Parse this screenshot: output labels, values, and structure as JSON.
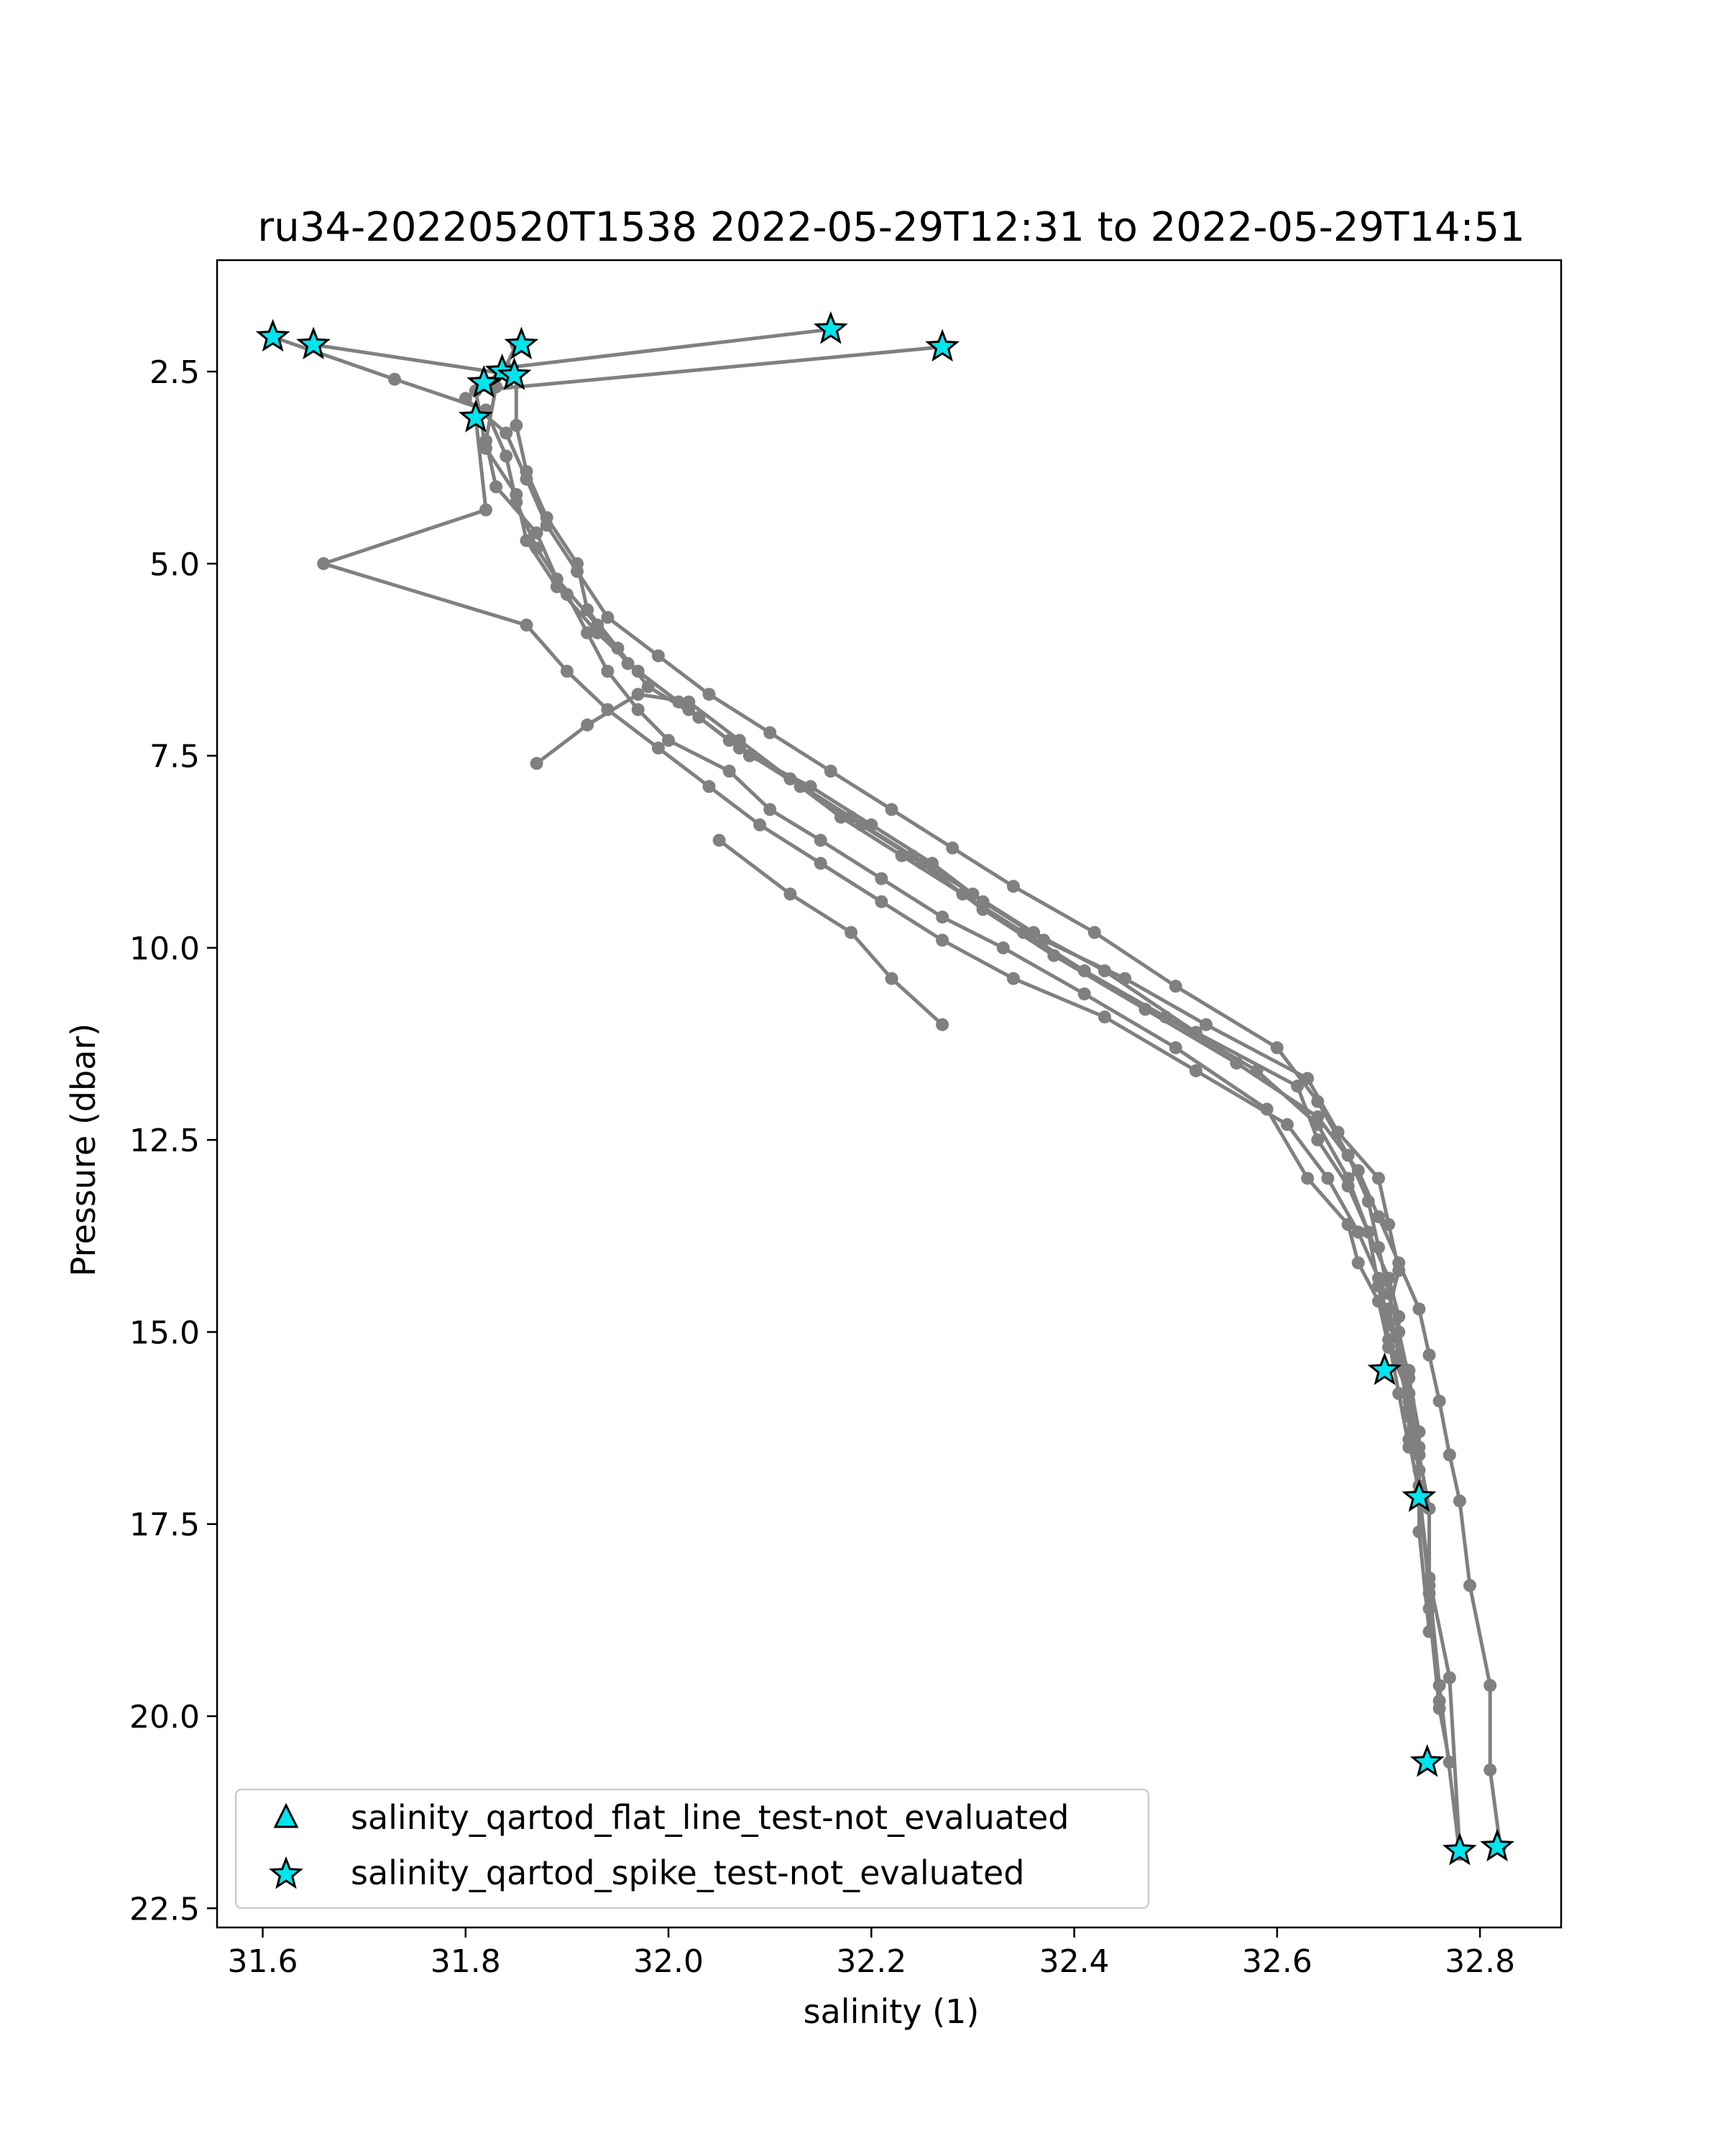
{
  "chart_data": {
    "type": "scatter",
    "title": "ru34-20220520T1538 2022-05-29T12:31 to 2022-05-29T14:51",
    "xlabel": "salinity (1)",
    "ylabel": "Pressure (dbar)",
    "xlim": [
      31.555,
      32.88
    ],
    "ylim": [
      22.75,
      1.05
    ],
    "y_inverted": true,
    "grid": false,
    "legend_position": "lower left",
    "xticks": [
      {
        "value": 31.6,
        "label": "31.6"
      },
      {
        "value": 31.8,
        "label": "31.8"
      },
      {
        "value": 32.0,
        "label": "32.0"
      },
      {
        "value": 32.2,
        "label": "32.2"
      },
      {
        "value": 32.4,
        "label": "32.4"
      },
      {
        "value": 32.6,
        "label": "32.6"
      },
      {
        "value": 32.8,
        "label": "32.8"
      }
    ],
    "yticks": [
      {
        "value": 2.5,
        "label": "2.5"
      },
      {
        "value": 5.0,
        "label": "5.0"
      },
      {
        "value": 7.5,
        "label": "7.5"
      },
      {
        "value": 10.0,
        "label": "10.0"
      },
      {
        "value": 12.5,
        "label": "12.5"
      },
      {
        "value": 15.0,
        "label": "15.0"
      },
      {
        "value": 17.5,
        "label": "17.5"
      },
      {
        "value": 20.0,
        "label": "20.0"
      },
      {
        "value": 22.5,
        "label": "22.5"
      }
    ],
    "profile_color": "#808080",
    "flag_color": "#00e5ee",
    "profiles": [
      {
        "x": [
          31.61,
          31.73,
          31.82,
          31.84,
          31.85,
          31.87,
          31.9,
          31.92,
          31.94,
          31.97,
          32.0,
          32.06,
          32.1,
          32.15,
          32.21,
          32.27,
          32.33,
          32.41,
          32.5,
          32.59,
          32.63,
          32.67,
          32.68,
          32.7,
          32.71,
          32.73,
          32.73,
          32.74,
          32.75,
          32.77,
          32.78
        ],
        "y": [
          2.05,
          2.6,
          3.0,
          3.6,
          4.2,
          4.8,
          5.4,
          5.9,
          6.4,
          6.9,
          7.3,
          7.7,
          8.2,
          8.6,
          9.1,
          9.6,
          10.0,
          10.6,
          11.3,
          12.1,
          13.0,
          13.6,
          14.1,
          14.6,
          15.2,
          15.8,
          16.4,
          17.1,
          18.2,
          19.5,
          21.75
        ]
      },
      {
        "x": [
          31.65,
          31.85,
          31.85,
          31.86,
          31.88,
          31.91,
          31.92,
          31.95,
          31.98,
          32.03,
          32.08,
          32.14,
          32.2,
          32.26,
          32.31,
          32.37,
          32.45,
          32.53,
          32.63,
          32.66,
          32.7,
          32.71,
          32.72,
          32.71,
          32.72,
          32.73,
          32.74,
          32.74,
          32.75,
          32.76,
          32.78
        ],
        "y": [
          2.15,
          2.55,
          3.2,
          3.8,
          4.4,
          5.0,
          5.6,
          6.1,
          6.6,
          7.0,
          7.5,
          7.9,
          8.4,
          8.9,
          9.4,
          9.9,
          10.4,
          11.0,
          11.7,
          12.4,
          13.0,
          13.6,
          14.2,
          14.7,
          15.3,
          15.9,
          16.5,
          17.2,
          18.3,
          19.6,
          21.8
        ]
      },
      {
        "x": [
          31.85,
          31.83,
          31.82,
          31.83,
          31.87,
          31.89,
          31.93,
          31.96,
          32.01,
          32.06,
          32.12,
          32.18,
          32.24,
          32.3,
          32.36,
          32.43,
          32.52,
          32.62,
          32.64,
          32.67,
          32.69,
          32.71,
          32.72,
          32.72,
          32.73,
          32.74,
          32.75,
          32.75,
          32.76,
          32.77
        ],
        "y": [
          2.15,
          2.7,
          3.4,
          4.0,
          4.6,
          5.2,
          5.8,
          6.3,
          6.8,
          7.3,
          7.8,
          8.3,
          8.8,
          9.3,
          9.8,
          10.3,
          11.1,
          11.8,
          12.5,
          13.1,
          13.7,
          14.3,
          14.8,
          15.4,
          16.0,
          16.6,
          17.3,
          18.6,
          19.9,
          20.6
        ]
      },
      {
        "x": [
          32.16,
          31.84,
          31.8,
          31.84,
          31.86,
          31.88,
          31.91,
          31.94,
          31.99,
          32.04,
          32.1,
          32.16,
          32.22,
          32.28,
          32.34,
          32.42,
          32.5,
          32.6,
          32.64,
          32.67,
          32.69,
          32.7,
          32.71,
          32.72,
          32.73,
          32.74,
          32.74,
          32.75,
          32.76
        ],
        "y": [
          1.95,
          2.45,
          2.85,
          3.3,
          3.9,
          4.5,
          5.1,
          5.7,
          6.2,
          6.7,
          7.2,
          7.7,
          8.2,
          8.7,
          9.2,
          9.8,
          10.5,
          11.3,
          12.0,
          12.7,
          13.3,
          13.9,
          14.5,
          15.0,
          15.6,
          16.3,
          17.0,
          18.4,
          19.8
        ]
      },
      {
        "x": [
          32.27,
          31.81,
          31.82,
          31.85,
          31.86,
          31.89,
          31.93,
          31.97,
          32.02,
          32.07,
          32.13,
          32.19,
          32.25,
          32.31,
          32.38,
          32.47,
          32.56,
          32.64,
          32.68,
          32.7,
          32.72,
          32.74,
          32.75,
          32.76,
          32.77,
          32.78,
          32.79,
          32.81,
          32.81,
          32.82
        ],
        "y": [
          2.18,
          2.75,
          3.5,
          4.1,
          4.7,
          5.3,
          5.9,
          6.4,
          6.9,
          7.4,
          7.9,
          8.4,
          8.9,
          9.5,
          10.1,
          10.8,
          11.5,
          12.2,
          12.9,
          13.5,
          14.1,
          14.7,
          15.3,
          15.9,
          16.6,
          17.2,
          18.3,
          19.6,
          20.7,
          21.7
        ]
      },
      {
        "x": [
          31.81,
          31.82,
          31.66,
          31.86,
          31.9,
          31.94,
          31.99,
          32.04,
          32.09,
          32.15,
          32.21,
          32.27,
          32.34,
          32.43,
          32.52,
          32.61,
          32.65,
          32.68,
          32.7,
          32.71,
          32.73,
          32.73,
          32.74,
          32.74,
          32.75
        ],
        "y": [
          3.1,
          4.3,
          5.0,
          5.8,
          6.4,
          6.9,
          7.4,
          7.9,
          8.4,
          8.9,
          9.4,
          9.9,
          10.4,
          10.9,
          11.6,
          12.3,
          13.0,
          13.7,
          14.3,
          14.9,
          15.5,
          16.1,
          16.8,
          17.6,
          18.9
        ]
      },
      {
        "x": [
          31.87,
          31.92,
          31.97,
          32.02,
          32.07,
          32.12,
          32.17,
          32.23,
          32.29,
          32.35,
          32.41,
          32.49,
          32.58,
          32.64,
          32.67,
          32.69,
          32.7,
          32.71,
          32.72,
          32.73
        ],
        "y": [
          7.6,
          7.1,
          6.7,
          6.8,
          7.3,
          7.8,
          8.3,
          8.8,
          9.3,
          9.8,
          10.3,
          10.9,
          11.6,
          12.3,
          13.0,
          13.7,
          14.4,
          15.1,
          15.8,
          16.5
        ]
      },
      {
        "x": [
          32.05,
          32.12,
          32.18,
          32.22,
          32.27
        ],
        "y": [
          8.6,
          9.3,
          9.8,
          10.4,
          11.0
        ]
      }
    ],
    "series": [
      {
        "name": "salinity_qartod_flat_line_test-not_evaluated",
        "marker": "triangle",
        "x": [],
        "y": []
      },
      {
        "name": "salinity_qartod_spike_test-not_evaluated",
        "marker": "star",
        "x": [
          31.61,
          31.65,
          31.855,
          32.16,
          32.27,
          31.836,
          31.848,
          31.818,
          31.81,
          32.706,
          32.74,
          32.748,
          32.78,
          32.817
        ],
        "y": [
          2.05,
          2.15,
          2.15,
          1.95,
          2.18,
          2.5,
          2.55,
          2.65,
          3.1,
          15.5,
          17.15,
          20.6,
          21.75,
          21.7
        ]
      }
    ]
  }
}
